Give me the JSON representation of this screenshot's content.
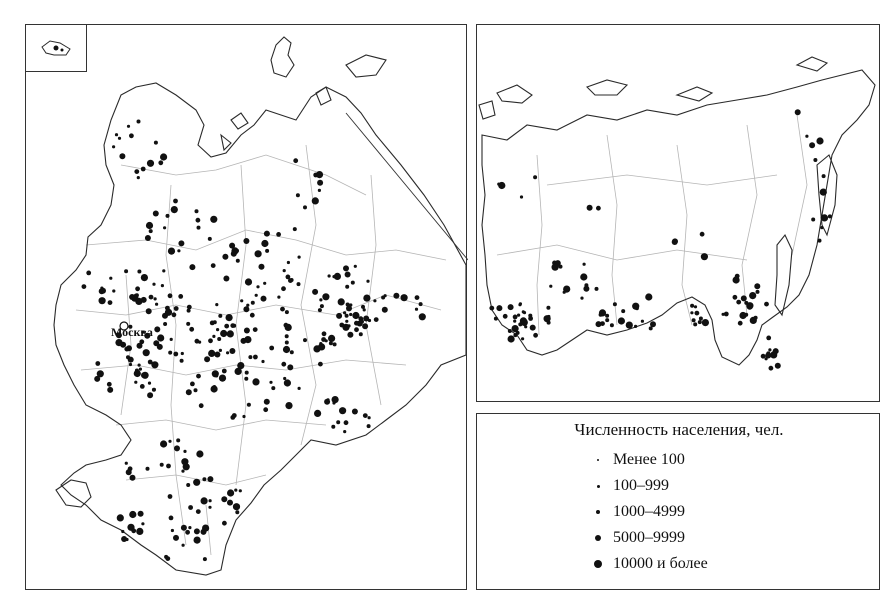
{
  "map": {
    "capital_label": "Москва"
  },
  "legend": {
    "title": "Численность населения, чел.",
    "items": [
      {
        "label": "Менее 100",
        "size_class": 1
      },
      {
        "label": "100–999",
        "size_class": 2
      },
      {
        "label": "1000–4999",
        "size_class": 3
      },
      {
        "label": "5000–9999",
        "size_class": 4
      },
      {
        "label": "10000 и более",
        "size_class": 5
      }
    ]
  },
  "colors": {
    "dots": "#111111",
    "borders": "#b5b5b5",
    "coast": "#2a2a2a",
    "frame": "#333333"
  }
}
